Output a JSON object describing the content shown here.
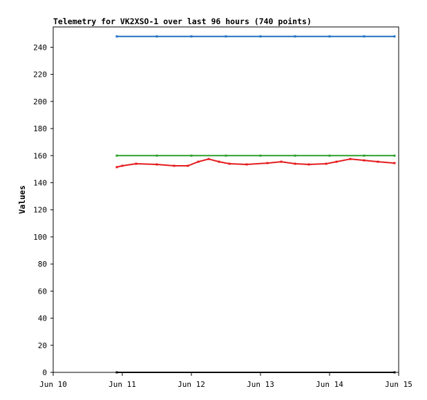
{
  "chart_data": {
    "type": "line",
    "title": "Telemetry for VK2XSO-1 over last 96 hours (740 points)",
    "xlabel": "",
    "ylabel": "Values",
    "x_range": [
      "Jun 10",
      "Jun 15"
    ],
    "ylim": [
      0,
      255
    ],
    "grid": false,
    "legend": "none",
    "x_tick_labels": [
      "Jun 10",
      "Jun 11",
      "Jun 12",
      "Jun 13",
      "Jun 14",
      "Jun 15"
    ],
    "y_ticks": [
      0,
      20,
      40,
      60,
      80,
      100,
      120,
      140,
      160,
      180,
      200,
      220,
      240
    ],
    "series": [
      {
        "color": "#1f6fbf",
        "x": [
          10.92,
          11.5,
          12.0,
          12.5,
          13.0,
          13.5,
          14.0,
          14.5,
          14.94
        ],
        "values": [
          248,
          248,
          248,
          248,
          248,
          248,
          248,
          248,
          248
        ]
      },
      {
        "color": "#2ca02c",
        "x": [
          10.92,
          11.5,
          12.0,
          12.5,
          13.0,
          13.5,
          14.0,
          14.5,
          14.94
        ],
        "values": [
          160,
          160,
          160,
          160,
          160,
          160,
          160,
          160,
          160
        ]
      },
      {
        "color": "#e41a1c",
        "x": [
          10.92,
          11.0,
          11.2,
          11.5,
          11.75,
          11.95,
          12.1,
          12.25,
          12.4,
          12.55,
          12.8,
          13.1,
          13.3,
          13.5,
          13.7,
          13.95,
          14.1,
          14.3,
          14.5,
          14.7,
          14.94
        ],
        "values": [
          151.5,
          152.5,
          154,
          153.5,
          152.5,
          152.5,
          155.5,
          157.5,
          155.5,
          154,
          153.5,
          154.5,
          155.5,
          154,
          153.5,
          154,
          155.5,
          157.5,
          156.5,
          155.5,
          154.5
        ]
      },
      {
        "color": "#000000",
        "x": [
          10.92,
          14.94
        ],
        "values": [
          0,
          0
        ]
      }
    ]
  }
}
